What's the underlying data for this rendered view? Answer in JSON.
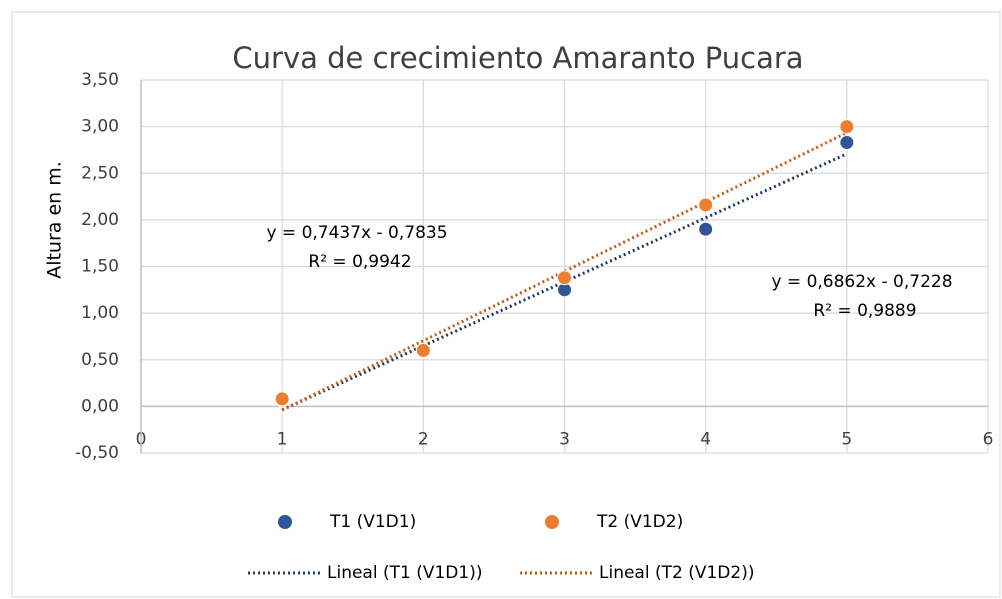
{
  "chart_data": {
    "type": "scatter",
    "title": "Curva de crecimiento Amaranto Pucara",
    "ylabel": "Altura en m.",
    "xlim": [
      0,
      6
    ],
    "xticks": [
      0,
      1,
      2,
      3,
      4,
      5,
      6
    ],
    "ylim": [
      -0.5,
      3.5
    ],
    "yticks": [
      {
        "value": -0.5,
        "label": "-0,50"
      },
      {
        "value": 0,
        "label": "0,00"
      },
      {
        "value": 0.5,
        "label": "0,50"
      },
      {
        "value": 1,
        "label": "1,00"
      },
      {
        "value": 1.5,
        "label": "1,50"
      },
      {
        "value": 2,
        "label": "2,00"
      },
      {
        "value": 2.5,
        "label": "2,50"
      },
      {
        "value": 3,
        "label": "3,00"
      },
      {
        "value": 3.5,
        "label": "3,50"
      }
    ],
    "grid": true,
    "legend": "bottom",
    "series": [
      {
        "name": "T1 (V1D1)",
        "color": "#2f5597",
        "x": [
          1,
          2,
          3,
          4,
          5
        ],
        "values": [
          0.07,
          0.6,
          1.25,
          1.9,
          2.83
        ]
      },
      {
        "name": "T2 (V1D2)",
        "color": "#ed7d31",
        "x": [
          1,
          2,
          3,
          4,
          5
        ],
        "values": [
          0.08,
          0.6,
          1.38,
          2.16,
          3.0
        ]
      }
    ],
    "trendlines": [
      {
        "name": "Lineal (T1 (V1D1))",
        "color": "#1f3864",
        "equation": "y = 0,6862x - 0,7228",
        "r2": "R² = 0,9889",
        "slope": 0.6862,
        "intercept": -0.7228
      },
      {
        "name": "Lineal (T2 (V1D2))",
        "color": "#c55a11",
        "equation": "y = 0,7437x - 0,7835",
        "r2": "R² = 0,9942",
        "slope": 0.7437,
        "intercept": -0.7835
      }
    ]
  }
}
